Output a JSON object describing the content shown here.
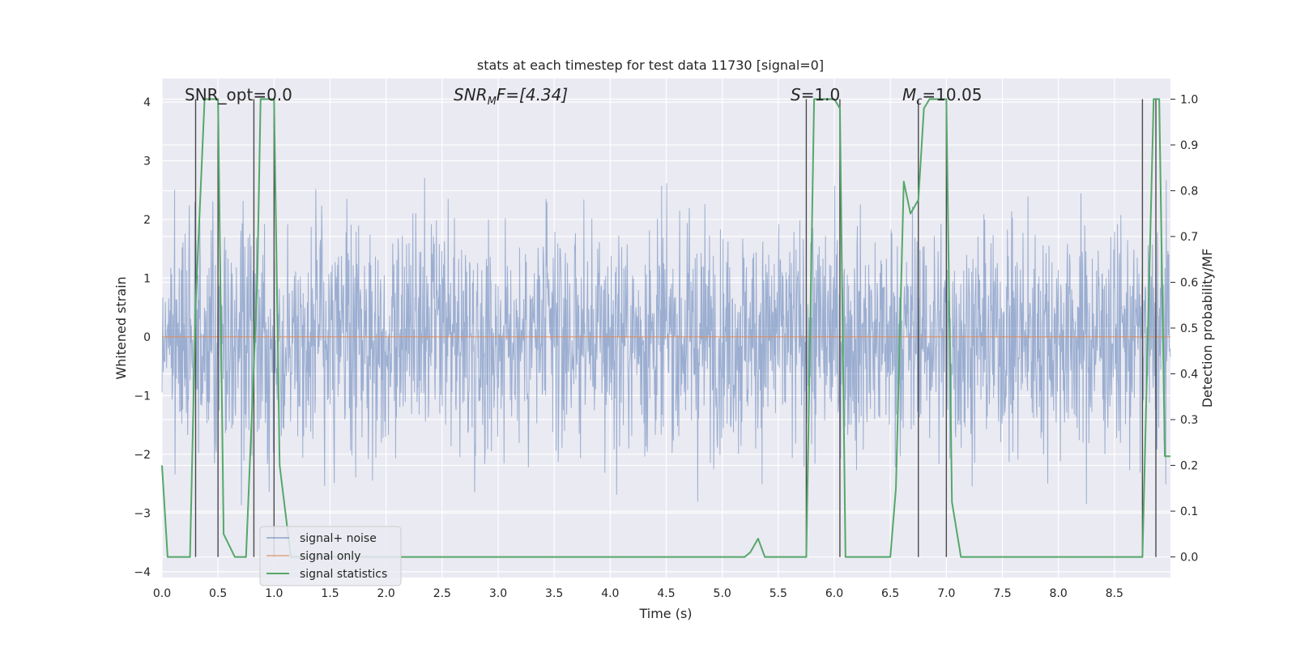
{
  "chart_data": {
    "type": "line",
    "title": "stats at each timestep for test data 11730 [signal=0]",
    "xlabel": "Time (s)",
    "ylabel_left": "Whitened strain",
    "ylabel_right": "Detection probability/MF",
    "xlim": [
      0.0,
      9.0
    ],
    "ylim_left": [
      -4.1,
      4.4
    ],
    "ylim_right": [
      -0.045,
      1.045
    ],
    "grid": true,
    "xticks": [
      "0.0",
      "0.5",
      "1.0",
      "1.5",
      "2.0",
      "2.5",
      "3.0",
      "3.5",
      "4.0",
      "4.5",
      "5.0",
      "5.5",
      "6.0",
      "6.5",
      "7.0",
      "7.5",
      "8.0",
      "8.5"
    ],
    "xtick_values": [
      0.0,
      0.5,
      1.0,
      1.5,
      2.0,
      2.5,
      3.0,
      3.5,
      4.0,
      4.5,
      5.0,
      5.5,
      6.0,
      6.5,
      7.0,
      7.5,
      8.0,
      8.5
    ],
    "yticks_left": [
      "4",
      "3",
      "2",
      "1",
      "0",
      "−1",
      "−2",
      "−3",
      "−4"
    ],
    "ytick_values_left": [
      4,
      3,
      2,
      1,
      0,
      -1,
      -2,
      -3,
      -4
    ],
    "yticks_right": [
      "1.0",
      "0.9",
      "0.8",
      "0.7",
      "0.6",
      "0.5",
      "0.4",
      "0.3",
      "0.2",
      "0.1",
      "0.0"
    ],
    "ytick_values_right": [
      1.0,
      0.9,
      0.8,
      0.7,
      0.6,
      0.5,
      0.4,
      0.3,
      0.2,
      0.1,
      0.0
    ],
    "annotations": [
      {
        "id": "snr-opt",
        "text": "SNR_opt=0.0"
      },
      {
        "id": "snr-mf",
        "text_main": "SNR",
        "text_sub": "M",
        "text_rest": "F=[4.34]"
      },
      {
        "id": "s-stat",
        "text_main": "S",
        "text_rest": "=1.0"
      },
      {
        "id": "mc",
        "text_main": "M",
        "text_sub": "c",
        "text_rest": "=10.05"
      }
    ],
    "legend": {
      "placement": "bottom-left",
      "entries": [
        "signal+ noise",
        "signal only",
        "signal statistics"
      ]
    },
    "series": [
      {
        "name": "signal+ noise",
        "color": "#4c72b0",
        "kind": "noise",
        "axis": "left",
        "peak_range": [
          -3.7,
          3.6
        ],
        "typical_std": 0.95
      },
      {
        "name": "signal only",
        "color": "#dd8452",
        "axis": "left",
        "x": [
          0.0,
          9.0
        ],
        "y": [
          0.0,
          0.0
        ]
      },
      {
        "name": "signal statistics",
        "color": "#55a868",
        "axis": "right",
        "x": [
          0.0,
          0.05,
          0.25,
          0.3,
          0.38,
          0.5,
          0.55,
          0.65,
          0.75,
          0.85,
          0.88,
          1.0,
          1.05,
          1.15,
          1.2,
          1.5,
          2.0,
          3.0,
          4.0,
          5.0,
          5.2,
          5.25,
          5.32,
          5.38,
          5.5,
          5.7,
          5.75,
          5.82,
          5.88,
          6.0,
          6.05,
          6.1,
          6.2,
          6.5,
          6.55,
          6.62,
          6.68,
          6.75,
          6.8,
          6.85,
          6.9,
          7.0,
          7.05,
          7.13,
          7.25,
          7.5,
          8.0,
          8.5,
          8.75,
          8.85,
          8.9,
          8.95,
          9.0
        ],
        "y": [
          0.2,
          0.0,
          0.0,
          0.55,
          1.0,
          1.0,
          0.05,
          0.0,
          0.0,
          0.6,
          1.0,
          1.0,
          0.2,
          0.0,
          0.0,
          0.0,
          0.0,
          0.0,
          0.0,
          0.0,
          0.0,
          0.01,
          0.04,
          0.0,
          0.0,
          0.0,
          0.0,
          1.0,
          1.0,
          1.0,
          0.98,
          0.0,
          0.0,
          0.0,
          0.15,
          0.82,
          0.75,
          0.78,
          0.98,
          1.0,
          1.0,
          1.0,
          0.12,
          0.0,
          0.0,
          0.0,
          0.0,
          0.0,
          0.0,
          1.0,
          1.0,
          0.22,
          0.22
        ]
      },
      {
        "name": "detection markers",
        "color": "#4a4a4a",
        "axis": "left",
        "kind": "vlines",
        "x": [
          0.3,
          0.5,
          0.82,
          1.0,
          5.75,
          6.05,
          6.75,
          7.0,
          8.75,
          8.87
        ]
      }
    ]
  }
}
